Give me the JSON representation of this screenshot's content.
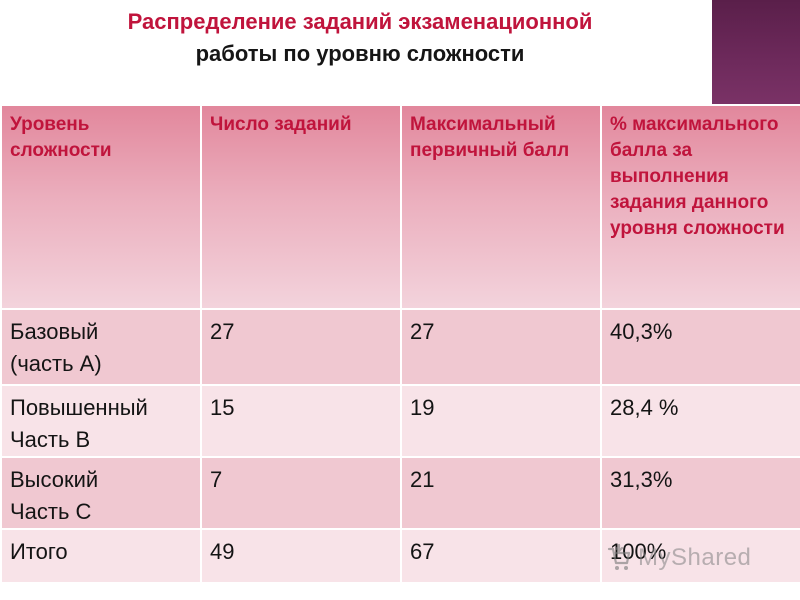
{
  "title": {
    "line1": "Распределение заданий экзаменационной",
    "line2": "работы   по уровню сложности"
  },
  "table": {
    "headers": [
      "Уровень сложности",
      "Число заданий",
      "Максимальный первичный балл",
      "% максимального балла за выполнения задания данного уровня сложности"
    ],
    "rows": [
      {
        "level_line1": "Базовый",
        "level_line2": "(часть А)",
        "count": "27",
        "max_score": "27",
        "percent": "40,3%"
      },
      {
        "level_line1": "Повышенный",
        "level_line2": "Часть В",
        "count": "15",
        "max_score": "19",
        "percent": "28,4 %"
      },
      {
        "level_line1": "Высокий",
        "level_line2": "Часть С",
        "count": "7",
        "max_score": "21",
        "percent": "31,3%"
      },
      {
        "level_line1": "Итого",
        "level_line2": "",
        "count": "49",
        "max_score": "67",
        "percent": "100%"
      }
    ]
  },
  "watermark": {
    "text": "MyShared",
    "icon": "shopping-cart-icon"
  },
  "colors": {
    "title_red": "#c0143c",
    "header_pink": "#e2879c",
    "row_dark": "#f0c8d1",
    "row_light": "#f8e3e8",
    "corner_purple": "#5a1f4a"
  }
}
